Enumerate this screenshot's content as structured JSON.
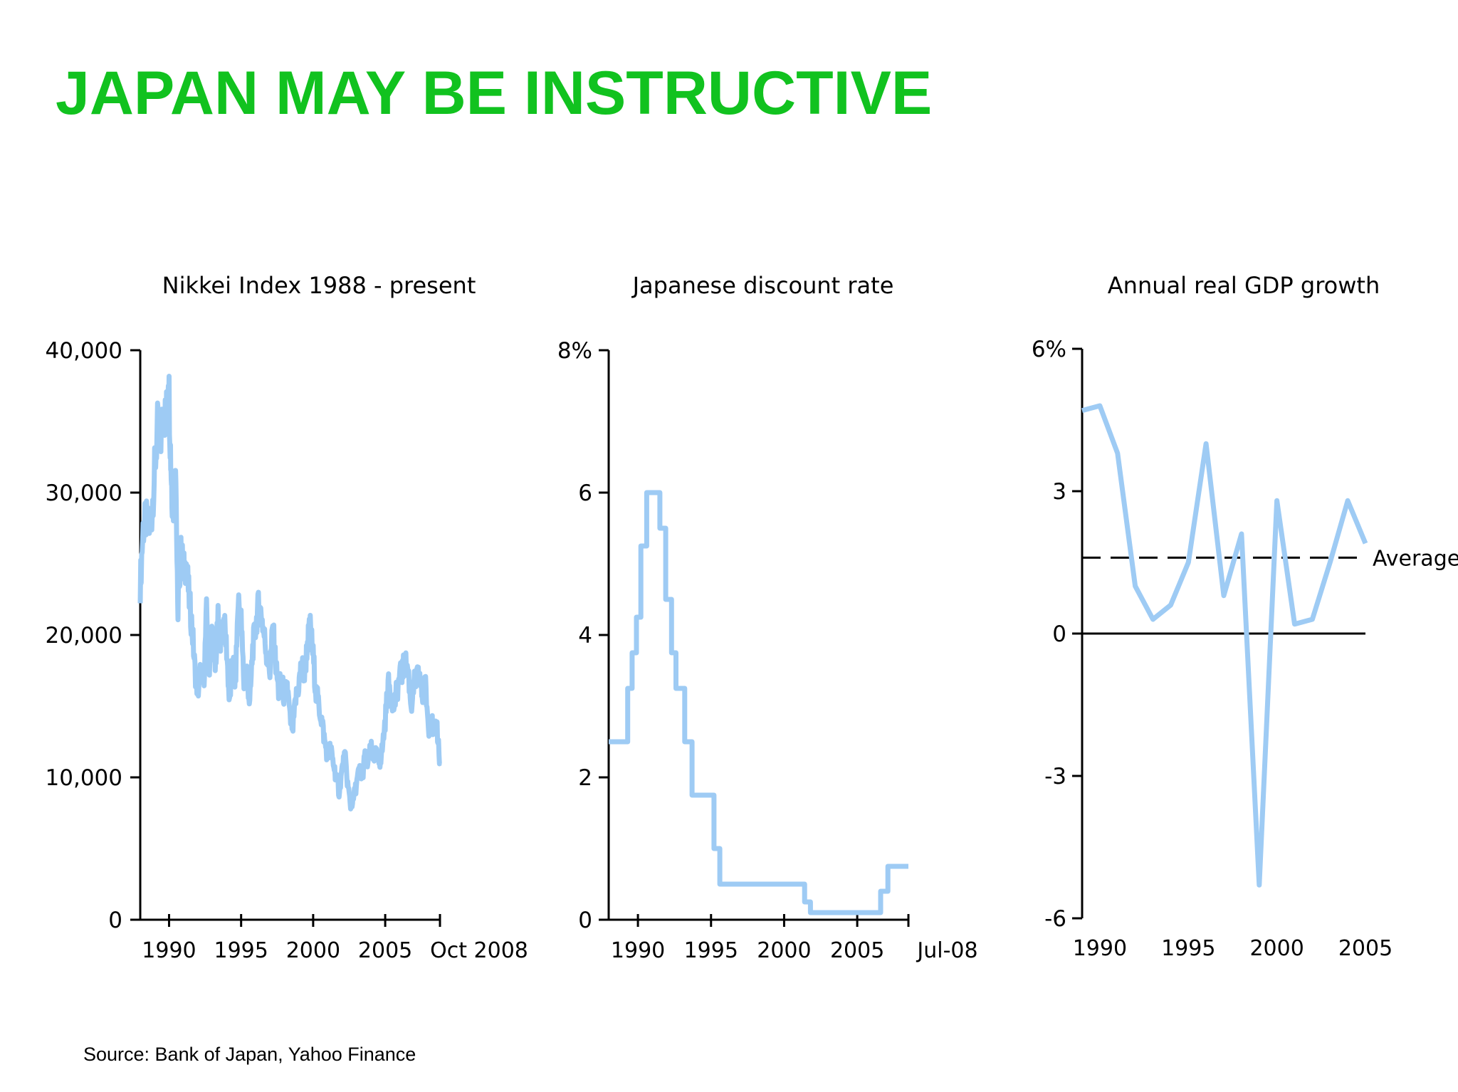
{
  "slide": {
    "title": "JAPAN MAY BE INSTRUCTIVE",
    "source": "Source:  Bank of Japan, Yahoo Finance",
    "title_color": "#11c21f",
    "series_color": "#9ecbf4"
  },
  "chart_data": [
    {
      "type": "line",
      "title": "Nikkei Index 1988 - present",
      "xlim": [
        1988,
        2008.8
      ],
      "ylim": [
        0,
        40000
      ],
      "yticks": [
        0,
        10000,
        20000,
        30000,
        40000
      ],
      "ytick_labels": [
        "0",
        "10,000",
        "20,000",
        "30,000",
        "40,000"
      ],
      "xticks": [
        1990,
        1995,
        2000,
        2005,
        2008.8
      ],
      "xtick_labels": [
        "1990",
        "1995",
        "2000",
        "2005",
        "Oct 2008"
      ],
      "series": [
        {
          "x": [
            1988.0,
            1988.2,
            1988.4,
            1988.6,
            1988.8,
            1989.0,
            1989.2,
            1989.4,
            1989.6,
            1989.8,
            1989.95,
            1990.1,
            1990.2,
            1990.3,
            1990.45,
            1990.6,
            1990.7,
            1990.85,
            1991.0,
            1991.2,
            1991.4,
            1991.6,
            1991.8,
            1992.0,
            1992.2,
            1992.4,
            1992.6,
            1992.8,
            1993.0,
            1993.2,
            1993.4,
            1993.6,
            1993.8,
            1994.0,
            1994.2,
            1994.4,
            1994.6,
            1994.8,
            1995.0,
            1995.2,
            1995.4,
            1995.6,
            1995.8,
            1996.0,
            1996.2,
            1996.4,
            1996.6,
            1996.8,
            1997.0,
            1997.2,
            1997.4,
            1997.6,
            1997.8,
            1998.0,
            1998.2,
            1998.4,
            1998.6,
            1998.8,
            1999.0,
            1999.2,
            1999.4,
            1999.6,
            1999.8,
            2000.0,
            2000.2,
            2000.4,
            2000.6,
            2000.8,
            2001.0,
            2001.2,
            2001.4,
            2001.6,
            2001.8,
            2002.0,
            2002.2,
            2002.4,
            2002.6,
            2002.8,
            2003.0,
            2003.2,
            2003.4,
            2003.6,
            2003.8,
            2004.0,
            2004.2,
            2004.4,
            2004.6,
            2004.8,
            2005.0,
            2005.2,
            2005.4,
            2005.6,
            2005.8,
            2006.0,
            2006.2,
            2006.4,
            2006.6,
            2006.8,
            2007.0,
            2007.2,
            2007.4,
            2007.6,
            2007.8,
            2008.0,
            2008.2,
            2008.4,
            2008.6,
            2008.8
          ],
          "y": [
            23500,
            27500,
            28000,
            27500,
            28500,
            31500,
            34500,
            33500,
            36000,
            35000,
            38900,
            33000,
            30000,
            29000,
            33000,
            21500,
            24000,
            26000,
            24500,
            25000,
            22500,
            20500,
            17500,
            16000,
            17500,
            16500,
            21500,
            18000,
            20500,
            17500,
            21000,
            19500,
            21000,
            19000,
            15000,
            18500,
            16500,
            22500,
            21000,
            16500,
            17500,
            15000,
            19000,
            20500,
            22000,
            21500,
            20000,
            18500,
            17500,
            20500,
            18000,
            16000,
            17000,
            15500,
            16500,
            14000,
            13500,
            15500,
            16500,
            18000,
            17000,
            19500,
            20500,
            18500,
            16000,
            15000,
            14000,
            12500,
            11500,
            12000,
            11000,
            10000,
            9000,
            10500,
            11500,
            9500,
            8000,
            8500,
            9500,
            10500,
            10000,
            11500,
            11000,
            12000,
            11500,
            11500,
            11000,
            12000,
            14000,
            16500,
            16000,
            15000,
            16000,
            17000,
            17500,
            18000,
            17500,
            15000,
            16500,
            17000,
            17000,
            15500,
            16500,
            13500,
            14000,
            13000,
            13500,
            11000
          ],
          "jitter": 0.018
        }
      ]
    },
    {
      "type": "line",
      "step": true,
      "title": "Japanese discount rate",
      "xlim": [
        1988,
        2008.5
      ],
      "ylim": [
        0,
        8
      ],
      "yticks": [
        0,
        2,
        4,
        6,
        8
      ],
      "ytick_labels": [
        "0",
        "2",
        "4",
        "6",
        "8%"
      ],
      "xticks": [
        1990,
        1995,
        2000,
        2005,
        2008.5
      ],
      "xtick_labels": [
        "1990",
        "1995",
        "2000",
        "2005",
        "Jul-08"
      ],
      "series": [
        {
          "x": [
            1988.0,
            1989.3,
            1989.6,
            1989.9,
            1990.2,
            1990.6,
            1991.5,
            1991.9,
            1992.3,
            1992.6,
            1993.2,
            1993.7,
            1995.2,
            1995.6,
            2001.1,
            2001.4,
            2001.8,
            2006.6,
            2007.1,
            2008.5
          ],
          "y": [
            2.5,
            3.25,
            3.75,
            4.25,
            5.25,
            6.0,
            5.5,
            4.5,
            3.75,
            3.25,
            2.5,
            1.75,
            1.0,
            0.5,
            0.5,
            0.25,
            0.1,
            0.4,
            0.75,
            0.75
          ]
        }
      ]
    },
    {
      "type": "line",
      "title": "Annual real GDP growth",
      "xlim": [
        1989,
        2005
      ],
      "ylim": [
        -6,
        6
      ],
      "yticks": [
        -6,
        -3,
        0,
        3,
        6
      ],
      "ytick_labels": [
        "-6",
        "-3",
        "0",
        "3",
        "6%"
      ],
      "xticks": [
        1990,
        1995,
        2000,
        2005
      ],
      "xtick_labels": [
        "1990",
        "1995",
        "2000",
        "2005"
      ],
      "series": [
        {
          "x": [
            1989,
            1990,
            1991,
            1992,
            1993,
            1994,
            1995,
            1996,
            1997,
            1998,
            1999,
            2000,
            2001,
            2002,
            2003,
            2004,
            2005
          ],
          "y": [
            4.7,
            4.8,
            3.8,
            1.0,
            0.3,
            0.6,
            1.5,
            4.0,
            0.8,
            2.1,
            -5.3,
            2.8,
            0.2,
            0.3,
            1.5,
            2.8,
            1.9
          ]
        }
      ],
      "average": {
        "value": 1.6,
        "label": "Average"
      }
    }
  ]
}
